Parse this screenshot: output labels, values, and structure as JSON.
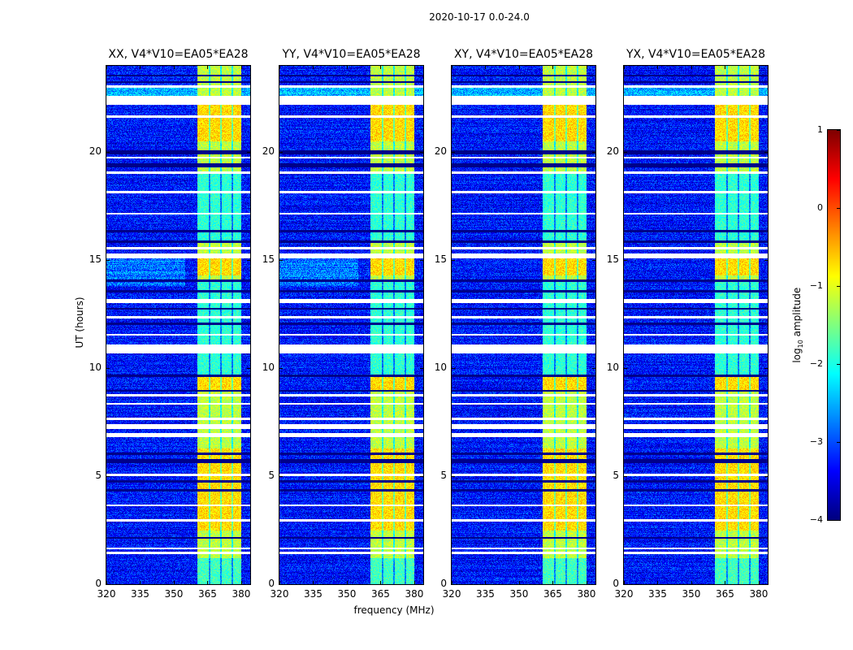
{
  "chart_data": {
    "type": "heatmap",
    "title": "2020-10-17 0.0-24.0",
    "xlabel": "frequency (MHz)",
    "ylabel": "UT (hours)",
    "xlim": [
      320,
      384
    ],
    "ylim": [
      0,
      24
    ],
    "xticks": [
      "320",
      "335",
      "350",
      "365",
      "380"
    ],
    "yticks": [
      "0",
      "5",
      "10",
      "15",
      "20"
    ],
    "panels": [
      {
        "title": "XX, V4*V10=EA05*EA28"
      },
      {
        "title": "YY, V4*V10=EA05*EA28"
      },
      {
        "title": "XY, V4*V10=EA05*EA28"
      },
      {
        "title": "YX, V4*V10=EA05*EA28"
      }
    ],
    "colorbar": {
      "label": "log10 amplitude",
      "label_main": "log",
      "label_sub": "10",
      "label_rest": " amplitude",
      "colormap": "jet",
      "range": [
        -4,
        1
      ],
      "ticks": [
        "1",
        "0",
        "−1",
        "−2",
        "−3",
        "−4"
      ]
    },
    "background_level_log10": -3.3,
    "bright_band_MHz": [
      360.5,
      380
    ],
    "bright_band_level_log10": -1.2,
    "dark_channel_lines_MHz": [
      366,
      371,
      376
    ],
    "flagged_white_rows_hours": [
      [
        1.4,
        1.5
      ],
      [
        1.6,
        1.7
      ],
      [
        2.9,
        3.0
      ],
      [
        3.6,
        3.7
      ],
      [
        5.0,
        5.1
      ],
      [
        6.8,
        7.0
      ],
      [
        7.2,
        7.4
      ],
      [
        7.6,
        7.7
      ],
      [
        8.3,
        8.4
      ],
      [
        8.7,
        8.8
      ],
      [
        10.7,
        11.1
      ],
      [
        11.5,
        11.6
      ],
      [
        12.3,
        12.4
      ],
      [
        13.0,
        13.2
      ],
      [
        15.1,
        15.3
      ],
      [
        15.5,
        15.6
      ],
      [
        17.1,
        17.2
      ],
      [
        18.1,
        18.2
      ],
      [
        19.0,
        19.1
      ],
      [
        19.7,
        19.8
      ],
      [
        21.6,
        21.7
      ],
      [
        22.2,
        22.6
      ],
      [
        23.0,
        23.1
      ]
    ],
    "flagged_black_rows_hours": [
      [
        2.1,
        2.2
      ],
      [
        4.3,
        4.4
      ],
      [
        4.7,
        4.8
      ],
      [
        5.6,
        5.8
      ],
      [
        6.0,
        6.1
      ],
      [
        8.9,
        9.0
      ],
      [
        9.6,
        9.7
      ],
      [
        12.0,
        12.1
      ],
      [
        12.7,
        12.8
      ],
      [
        13.5,
        13.6
      ],
      [
        14.0,
        14.1
      ],
      [
        15.8,
        15.9
      ],
      [
        16.3,
        16.4
      ],
      [
        19.3,
        19.5
      ],
      [
        19.9,
        20.1
      ],
      [
        23.2,
        23.3
      ],
      [
        23.5,
        23.6
      ]
    ]
  }
}
